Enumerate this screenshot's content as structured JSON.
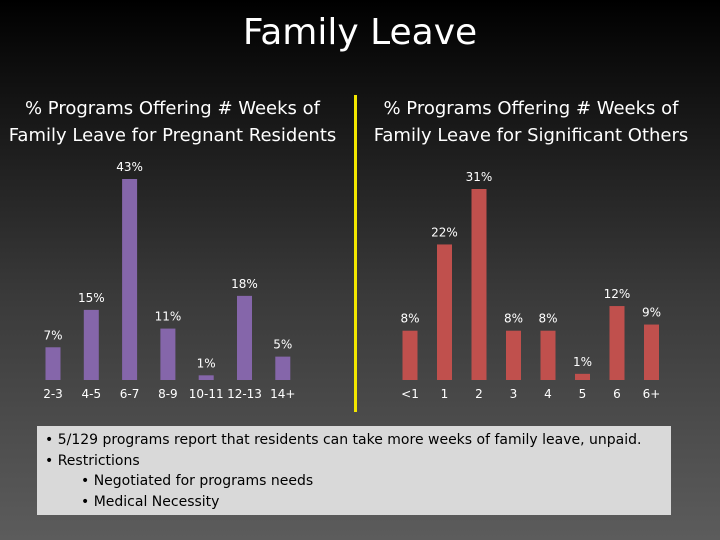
{
  "title": "Family Leave",
  "colors": {
    "left_bar": "#8566aa",
    "right_bar": "#c0504d",
    "divider": "#f2e600",
    "text": "#ffffff"
  },
  "chart_data": [
    {
      "type": "bar",
      "title": "% Programs Offering # Weeks of Family Leave for Pregnant Residents",
      "title_lines": [
        "% Programs Offering # Weeks of",
        "Family Leave for Pregnant Residents"
      ],
      "categories": [
        "2-3",
        "4-5",
        "6-7",
        "8-9",
        "10-11",
        "12-13",
        "14+"
      ],
      "values": [
        7,
        15,
        43,
        11,
        1,
        18,
        5
      ],
      "labels": [
        "7%",
        "15%",
        "43%",
        "11%",
        "1%",
        "18%",
        "5%"
      ],
      "unit": "%",
      "grid": false,
      "legend": "none"
    },
    {
      "type": "bar",
      "title": "% Programs Offering # Weeks of Family Leave for Significant Others",
      "title_lines": [
        "% Programs Offering # Weeks of",
        "Family Leave for Significant Others"
      ],
      "categories": [
        "<1",
        "1",
        "2",
        "3",
        "4",
        "5",
        "6",
        "6+"
      ],
      "values": [
        8,
        22,
        31,
        8,
        8,
        1,
        12,
        9
      ],
      "labels": [
        "8%",
        "22%",
        "31%",
        "8%",
        "8%",
        "1%",
        "12%",
        "9%"
      ],
      "unit": "%",
      "grid": false,
      "legend": "none"
    }
  ],
  "notes": [
    {
      "level": 1,
      "text": "• 5/129 programs report that residents can take more weeks of family leave, unpaid."
    },
    {
      "level": 1,
      "text": "• Restrictions"
    },
    {
      "level": 2,
      "text": "• Negotiated for programs needs"
    },
    {
      "level": 2,
      "text": "• Medical Necessity"
    }
  ]
}
